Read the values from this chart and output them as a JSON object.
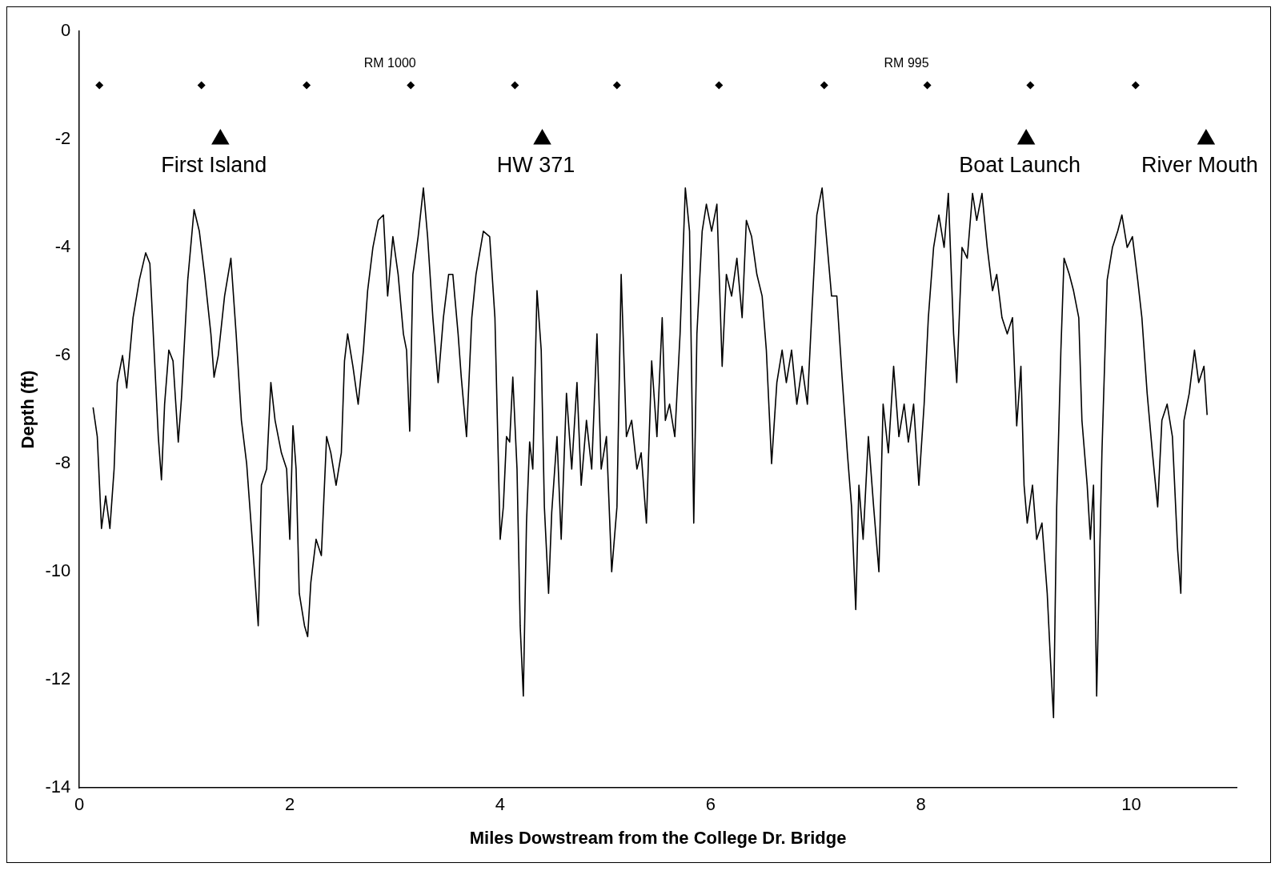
{
  "chart_data": {
    "type": "line",
    "xlabel": "Miles Dowstream from the College Dr. Bridge",
    "ylabel": "Depth (ft)",
    "xlim": [
      0,
      11
    ],
    "xticks": [
      0,
      2,
      4,
      6,
      8,
      10
    ],
    "ylim": [
      -14,
      0
    ],
    "yticks": [
      -14,
      -12,
      -10,
      -8,
      -6,
      -4,
      -2,
      0
    ],
    "grid": false,
    "legend": false,
    "series": [
      {
        "type": "line",
        "marker": "none",
        "color": "#000000",
        "x": [
          0.13,
          0.17,
          0.21,
          0.25,
          0.29,
          0.33,
          0.36,
          0.41,
          0.45,
          0.51,
          0.57,
          0.63,
          0.67,
          0.71,
          0.75,
          0.78,
          0.81,
          0.85,
          0.89,
          0.94,
          0.97,
          1.03,
          1.09,
          1.14,
          1.19,
          1.25,
          1.28,
          1.32,
          1.38,
          1.44,
          1.49,
          1.54,
          1.59,
          1.62,
          1.65,
          1.7,
          1.73,
          1.78,
          1.82,
          1.86,
          1.92,
          1.97,
          2.0,
          2.03,
          2.06,
          2.09,
          2.14,
          2.17,
          2.2,
          2.25,
          2.3,
          2.35,
          2.39,
          2.44,
          2.49,
          2.52,
          2.55,
          2.6,
          2.65,
          2.7,
          2.74,
          2.79,
          2.84,
          2.89,
          2.93,
          2.98,
          3.03,
          3.08,
          3.11,
          3.14,
          3.17,
          3.22,
          3.27,
          3.31,
          3.36,
          3.41,
          3.46,
          3.51,
          3.55,
          3.6,
          3.63,
          3.68,
          3.73,
          3.77,
          3.84,
          3.9,
          3.95,
          4.0,
          4.03,
          4.06,
          4.09,
          4.12,
          4.16,
          4.19,
          4.22,
          4.25,
          4.28,
          4.31,
          4.35,
          4.39,
          4.42,
          4.46,
          4.49,
          4.54,
          4.58,
          4.63,
          4.68,
          4.73,
          4.77,
          4.82,
          4.87,
          4.92,
          4.96,
          5.01,
          5.06,
          5.11,
          5.15,
          5.2,
          5.25,
          5.3,
          5.34,
          5.39,
          5.44,
          5.49,
          5.54,
          5.57,
          5.61,
          5.66,
          5.71,
          5.76,
          5.8,
          5.84,
          5.87,
          5.92,
          5.96,
          6.01,
          6.06,
          6.11,
          6.15,
          6.2,
          6.25,
          6.3,
          6.34,
          6.39,
          6.44,
          6.49,
          6.53,
          6.58,
          6.63,
          6.68,
          6.72,
          6.77,
          6.82,
          6.87,
          6.92,
          6.96,
          7.01,
          7.06,
          7.11,
          7.15,
          7.2,
          7.25,
          7.3,
          7.34,
          7.38,
          7.41,
          7.45,
          7.5,
          7.55,
          7.6,
          7.64,
          7.69,
          7.74,
          7.79,
          7.84,
          7.88,
          7.93,
          7.98,
          8.03,
          8.07,
          8.12,
          8.17,
          8.22,
          8.26,
          8.31,
          8.34,
          8.39,
          8.44,
          8.49,
          8.53,
          8.58,
          8.63,
          8.68,
          8.72,
          8.77,
          8.82,
          8.87,
          8.91,
          8.95,
          8.98,
          9.01,
          9.06,
          9.1,
          9.15,
          9.2,
          9.23,
          9.26,
          9.29,
          9.33,
          9.36,
          9.41,
          9.45,
          9.5,
          9.53,
          9.58,
          9.61,
          9.64,
          9.67,
          9.72,
          9.77,
          9.82,
          9.87,
          9.91,
          9.96,
          10.01,
          10.06,
          10.1,
          10.15,
          10.2,
          10.25,
          10.29,
          10.34,
          10.39,
          10.44,
          10.47,
          10.5,
          10.55,
          10.6,
          10.64,
          10.69,
          10.72
        ],
        "values": [
          -6.96,
          -7.5,
          -9.2,
          -8.6,
          -9.2,
          -8.1,
          -6.5,
          -6.0,
          -6.6,
          -5.3,
          -4.6,
          -4.1,
          -4.3,
          -5.9,
          -7.5,
          -8.3,
          -6.9,
          -5.9,
          -6.1,
          -7.6,
          -6.8,
          -4.6,
          -3.3,
          -3.7,
          -4.5,
          -5.6,
          -6.4,
          -6.0,
          -4.9,
          -4.2,
          -5.6,
          -7.2,
          -8.0,
          -8.8,
          -9.6,
          -11.0,
          -8.4,
          -8.1,
          -6.5,
          -7.2,
          -7.8,
          -8.1,
          -9.4,
          -7.3,
          -8.1,
          -10.4,
          -11.0,
          -11.2,
          -10.2,
          -9.4,
          -9.7,
          -7.5,
          -7.8,
          -8.4,
          -7.8,
          -6.1,
          -5.6,
          -6.2,
          -6.9,
          -5.9,
          -4.8,
          -4.0,
          -3.5,
          -3.4,
          -4.9,
          -3.8,
          -4.5,
          -5.6,
          -5.9,
          -7.4,
          -4.5,
          -3.8,
          -2.9,
          -3.8,
          -5.3,
          -6.5,
          -5.3,
          -4.5,
          -4.5,
          -5.6,
          -6.4,
          -7.5,
          -5.3,
          -4.5,
          -3.7,
          -3.8,
          -5.3,
          -9.4,
          -8.8,
          -7.5,
          -7.6,
          -6.4,
          -8.1,
          -11.0,
          -12.3,
          -9.1,
          -7.6,
          -8.1,
          -4.8,
          -5.9,
          -8.8,
          -10.4,
          -8.9,
          -7.5,
          -9.4,
          -6.7,
          -8.1,
          -6.5,
          -8.4,
          -7.2,
          -8.1,
          -5.6,
          -8.1,
          -7.5,
          -10.0,
          -8.8,
          -4.5,
          -7.5,
          -7.2,
          -8.1,
          -7.8,
          -9.1,
          -6.1,
          -7.5,
          -5.3,
          -7.2,
          -6.9,
          -7.5,
          -5.6,
          -2.9,
          -3.7,
          -9.1,
          -5.6,
          -3.7,
          -3.2,
          -3.7,
          -3.2,
          -6.2,
          -4.5,
          -4.9,
          -4.2,
          -5.3,
          -3.5,
          -3.8,
          -4.5,
          -4.9,
          -5.9,
          -8.0,
          -6.5,
          -5.9,
          -6.5,
          -5.9,
          -6.9,
          -6.2,
          -6.9,
          -5.3,
          -3.4,
          -2.9,
          -4.0,
          -4.9,
          -4.9,
          -6.4,
          -7.8,
          -8.8,
          -10.7,
          -8.4,
          -9.4,
          -7.5,
          -8.8,
          -10.0,
          -6.9,
          -7.8,
          -6.2,
          -7.5,
          -6.9,
          -7.6,
          -6.9,
          -8.4,
          -6.9,
          -5.3,
          -4.0,
          -3.4,
          -4.0,
          -3.0,
          -5.6,
          -6.5,
          -4.0,
          -4.2,
          -3.0,
          -3.5,
          -3.0,
          -4.0,
          -4.8,
          -4.5,
          -5.3,
          -5.6,
          -5.3,
          -7.3,
          -6.2,
          -8.4,
          -9.1,
          -8.4,
          -9.4,
          -9.1,
          -10.4,
          -11.6,
          -12.7,
          -8.8,
          -5.9,
          -4.2,
          -4.5,
          -4.8,
          -5.3,
          -7.2,
          -8.4,
          -9.4,
          -8.4,
          -12.3,
          -7.8,
          -4.6,
          -4.0,
          -3.7,
          -3.4,
          -4.0,
          -3.8,
          -4.6,
          -5.3,
          -6.7,
          -7.8,
          -8.8,
          -7.2,
          -6.9,
          -7.5,
          -9.6,
          -10.4,
          -7.2,
          -6.7,
          -5.9,
          -6.5,
          -6.2,
          -7.1
        ]
      },
      {
        "type": "scatter",
        "marker": "diamond",
        "color": "#000000",
        "x": [
          0.19,
          1.16,
          2.16,
          3.15,
          4.14,
          5.11,
          6.08,
          7.08,
          8.06,
          9.04,
          10.04
        ],
        "values": [
          -1,
          -1,
          -1,
          -1,
          -1,
          -1,
          -1,
          -1,
          -1,
          -1,
          -1
        ]
      },
      {
        "type": "scatter",
        "marker": "triangle",
        "color": "#000000",
        "x": [
          1.34,
          4.4,
          9.0,
          10.71
        ],
        "values": [
          -2,
          -2,
          -2,
          -2
        ]
      }
    ],
    "annotations": [
      {
        "text": "RM 1000",
        "x": 3.15,
        "y": -1
      },
      {
        "text": "RM 995",
        "x": 8.06,
        "y": -1
      },
      {
        "text": "First Island",
        "x": 1.34,
        "y": -2
      },
      {
        "text": "HW 371",
        "x": 4.4,
        "y": -2
      },
      {
        "text": "Boat Launch",
        "x": 9.0,
        "y": -2
      },
      {
        "text": "River Mouth",
        "x": 10.71,
        "y": -2
      }
    ]
  }
}
